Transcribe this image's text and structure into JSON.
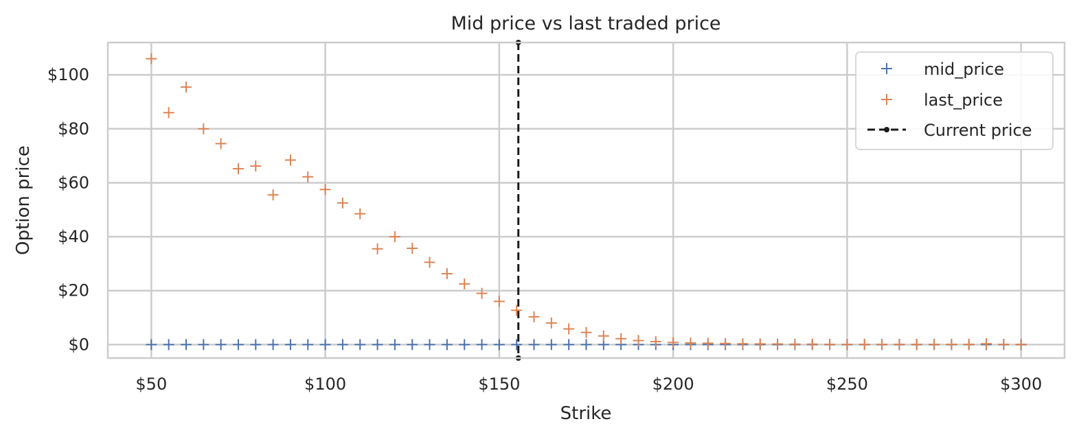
{
  "chart_data": {
    "type": "scatter",
    "title": "Mid price vs last traded price",
    "xlabel": "Strike",
    "ylabel": "Option price",
    "xlim": [
      37.5,
      312.5
    ],
    "ylim": [
      -5,
      112
    ],
    "xticks": [
      50,
      100,
      150,
      200,
      250,
      300
    ],
    "xtick_labels": [
      "$50",
      "$100",
      "$150",
      "$200",
      "$250",
      "$300"
    ],
    "yticks": [
      0,
      20,
      40,
      60,
      80,
      100
    ],
    "ytick_labels": [
      "$0",
      "$20",
      "$40",
      "$60",
      "$80",
      "$100"
    ],
    "grid": true,
    "legend_position": "top-right",
    "series": [
      {
        "name": "mid_price",
        "marker": "+",
        "color": "#4c72b0",
        "x": [
          50,
          55,
          60,
          65,
          70,
          75,
          80,
          85,
          90,
          95,
          100,
          105,
          110,
          115,
          120,
          125,
          130,
          135,
          140,
          145,
          150,
          155,
          160,
          165,
          170,
          175,
          180,
          185,
          190,
          195,
          200,
          205,
          210,
          215,
          220,
          225,
          230,
          235,
          240,
          245,
          250,
          255,
          260,
          265,
          270,
          275,
          280,
          285,
          290,
          295,
          300
        ],
        "y": [
          0,
          0,
          0,
          0,
          0,
          0,
          0,
          0,
          0,
          0,
          0,
          0,
          0,
          0,
          0,
          0,
          0,
          0,
          0,
          0,
          0,
          0,
          0,
          0,
          0,
          0,
          0,
          0,
          0,
          0,
          0,
          0,
          0,
          0,
          0,
          0,
          0,
          0,
          0,
          0,
          0,
          0,
          0,
          0,
          0,
          0,
          0,
          0,
          0,
          0,
          0
        ]
      },
      {
        "name": "last_price",
        "marker": "+",
        "color": "#dd8452",
        "x": [
          50,
          55,
          60,
          65,
          70,
          75,
          80,
          85,
          90,
          95,
          100,
          105,
          110,
          115,
          120,
          125,
          130,
          135,
          140,
          145,
          150,
          155,
          160,
          165,
          170,
          175,
          180,
          185,
          190,
          195,
          200,
          205,
          210,
          215,
          220,
          225,
          230,
          235,
          240,
          245,
          250,
          255,
          260,
          265,
          270,
          275,
          280,
          285,
          290,
          295,
          300
        ],
        "y": [
          106,
          86,
          95.5,
          80,
          74.5,
          65.2,
          66.2,
          55.5,
          68.4,
          62.2,
          57.5,
          52.5,
          48.5,
          35.5,
          40,
          35.7,
          30.5,
          26.3,
          22.5,
          19,
          16,
          12.7,
          10.3,
          8,
          5.8,
          4.5,
          3.2,
          2.2,
          1.5,
          1.1,
          0.8,
          0.6,
          0.5,
          0.4,
          0.3,
          0.25,
          0.2,
          0.15,
          0.15,
          0.1,
          0.1,
          0.1,
          0.1,
          0.1,
          0.1,
          0.1,
          0.1,
          0.1,
          0.3,
          0.1,
          0.1
        ]
      }
    ],
    "vline": {
      "name": "Current price",
      "x": 155.5,
      "color": "#1a1a1a",
      "style": "dashed"
    }
  }
}
